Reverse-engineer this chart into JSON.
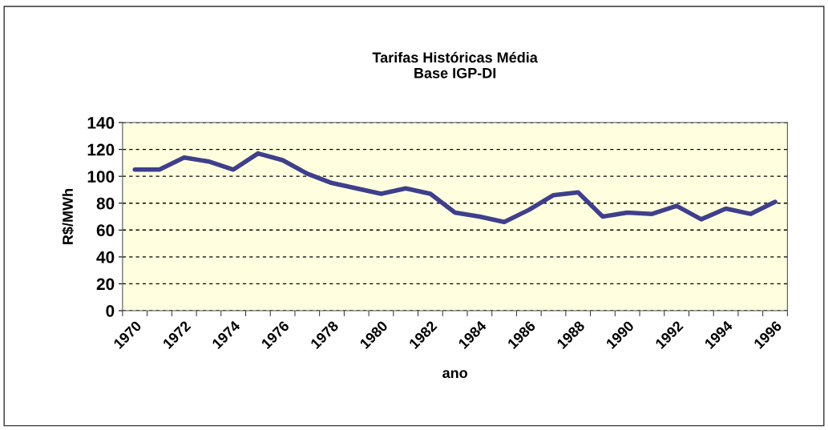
{
  "chart_data": {
    "type": "line",
    "title": "Tarifas Históricas Média\nBase IGP-DI",
    "xlabel": "ano",
    "ylabel": "R$/MWh",
    "categories": [
      "1970",
      null,
      "1972",
      null,
      "1974",
      null,
      "1976",
      null,
      "1978",
      null,
      "1980",
      null,
      "1982",
      null,
      "1984",
      null,
      "1986",
      null,
      "1988",
      null,
      "1990",
      null,
      "1992",
      null,
      "1994",
      null,
      "1996"
    ],
    "series": [
      {
        "color": "#3f3f8c",
        "values": [
          105,
          105,
          114,
          111,
          105,
          117,
          112,
          102,
          95,
          91,
          87,
          91,
          87,
          73,
          70,
          66,
          75,
          86,
          88,
          70,
          73,
          72,
          78,
          68,
          76,
          72,
          81
        ]
      }
    ],
    "ylim": [
      0,
      140
    ],
    "yticks": [
      0,
      20,
      40,
      60,
      80,
      100,
      120,
      140
    ],
    "grid": "y",
    "marker": "none",
    "line_style": "solid"
  }
}
